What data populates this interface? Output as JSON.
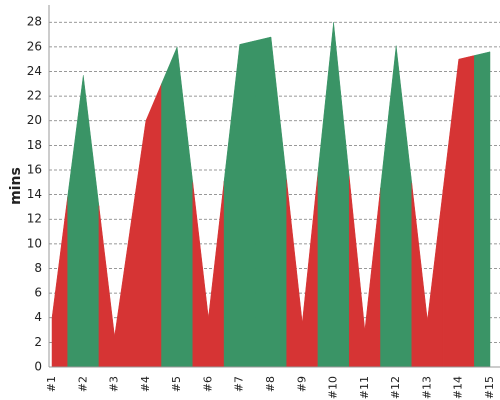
{
  "chart_data": {
    "type": "area",
    "y_label": "mins",
    "categories": [
      "#1",
      "#2",
      "#3",
      "#4",
      "#5",
      "#6",
      "#7",
      "#8",
      "#9",
      "#10",
      "#11",
      "#12",
      "#13",
      "#14",
      "#15"
    ],
    "values": [
      4.0,
      23.7,
      2.5,
      20.0,
      26.0,
      4.0,
      26.2,
      26.8,
      3.6,
      28.0,
      3.0,
      26.1,
      3.8,
      25.0,
      25.6
    ],
    "colors": [
      "#d63434",
      "#3a9466",
      "#d63434",
      "#d63434",
      "#3a9466",
      "#d63434",
      "#3a9466",
      "#3a9466",
      "#d63434",
      "#3a9466",
      "#d63434",
      "#3a9466",
      "#d63434",
      "#d63434",
      "#3a9466"
    ],
    "ylim": [
      0,
      29.4
    ],
    "yticks": [
      0,
      2,
      4,
      6,
      8,
      10,
      12,
      14,
      16,
      18,
      20,
      22,
      24,
      26,
      28
    ],
    "grid": true
  }
}
